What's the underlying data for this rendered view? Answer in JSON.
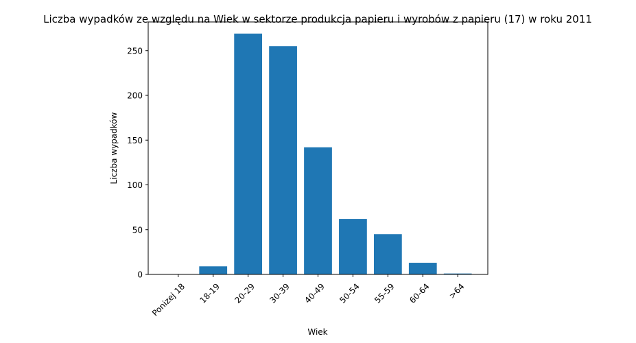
{
  "chart_data": {
    "type": "bar",
    "title": "Liczba wypadków ze względu na Wiek w sektorze produkcja papieru i wyrobów z papieru  (17)   w roku 2011",
    "xlabel": "Wiek",
    "ylabel": "Liczba wypadków",
    "categories": [
      "Ponizej 18",
      "18-19",
      "20-29",
      "30-39",
      "40-49",
      "50-54",
      "55-59",
      "60-64",
      ">64"
    ],
    "values": [
      0,
      9,
      269,
      255,
      142,
      62,
      45,
      13,
      1
    ],
    "ylim": [
      0,
      282
    ],
    "yticks": [
      0,
      50,
      100,
      150,
      200,
      250
    ],
    "bar_color": "#1f77b4",
    "grid": false,
    "legend": "none"
  }
}
